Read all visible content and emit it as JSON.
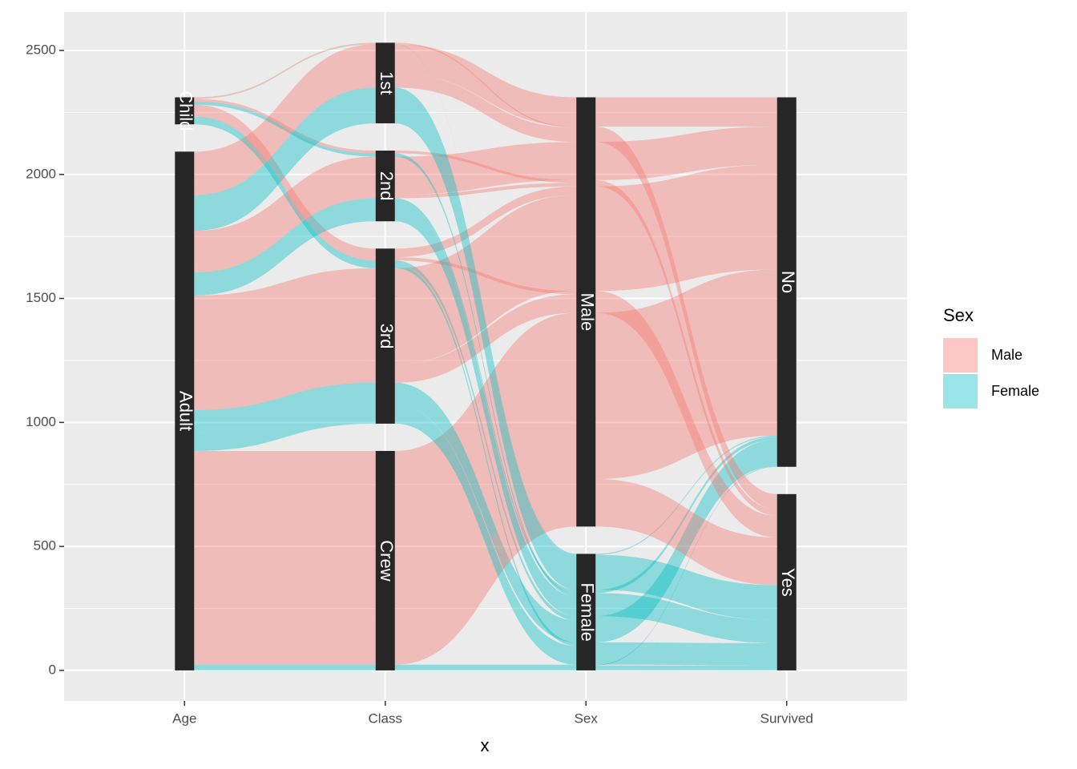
{
  "chart_data": {
    "type": "alluvial",
    "x_label": "x",
    "axes": [
      "Age",
      "Class",
      "Sex",
      "Survived"
    ],
    "strata": [
      [
        "Child",
        "Adult"
      ],
      [
        "1st",
        "2nd",
        "3rd",
        "Crew"
      ],
      [
        "Male",
        "Female"
      ],
      [
        "No",
        "Yes"
      ]
    ],
    "legend_title": "Sex",
    "series": [
      {
        "name": "Male",
        "color": "#F8766D"
      },
      {
        "name": "Female",
        "color": "#00BFC4"
      }
    ],
    "flows": [
      {
        "path": [
          "Child",
          "3rd",
          "Male",
          "No"
        ],
        "value": 35
      },
      {
        "path": [
          "Child",
          "3rd",
          "Female",
          "No"
        ],
        "value": 17
      },
      {
        "path": [
          "Adult",
          "1st",
          "Male",
          "No"
        ],
        "value": 118
      },
      {
        "path": [
          "Adult",
          "2nd",
          "Male",
          "No"
        ],
        "value": 154
      },
      {
        "path": [
          "Adult",
          "3rd",
          "Male",
          "No"
        ],
        "value": 387
      },
      {
        "path": [
          "Adult",
          "Crew",
          "Male",
          "No"
        ],
        "value": 670
      },
      {
        "path": [
          "Adult",
          "1st",
          "Female",
          "No"
        ],
        "value": 4
      },
      {
        "path": [
          "Adult",
          "2nd",
          "Female",
          "No"
        ],
        "value": 13
      },
      {
        "path": [
          "Adult",
          "3rd",
          "Female",
          "No"
        ],
        "value": 89
      },
      {
        "path": [
          "Adult",
          "Crew",
          "Female",
          "No"
        ],
        "value": 3
      },
      {
        "path": [
          "Child",
          "1st",
          "Male",
          "Yes"
        ],
        "value": 5
      },
      {
        "path": [
          "Child",
          "2nd",
          "Male",
          "Yes"
        ],
        "value": 11
      },
      {
        "path": [
          "Child",
          "3rd",
          "Male",
          "Yes"
        ],
        "value": 13
      },
      {
        "path": [
          "Child",
          "1st",
          "Female",
          "Yes"
        ],
        "value": 1
      },
      {
        "path": [
          "Child",
          "2nd",
          "Female",
          "Yes"
        ],
        "value": 13
      },
      {
        "path": [
          "Child",
          "3rd",
          "Female",
          "Yes"
        ],
        "value": 14
      },
      {
        "path": [
          "Adult",
          "1st",
          "Male",
          "Yes"
        ],
        "value": 57
      },
      {
        "path": [
          "Adult",
          "2nd",
          "Male",
          "Yes"
        ],
        "value": 14
      },
      {
        "path": [
          "Adult",
          "3rd",
          "Male",
          "Yes"
        ],
        "value": 75
      },
      {
        "path": [
          "Adult",
          "Crew",
          "Male",
          "Yes"
        ],
        "value": 192
      },
      {
        "path": [
          "Adult",
          "1st",
          "Female",
          "Yes"
        ],
        "value": 140
      },
      {
        "path": [
          "Adult",
          "2nd",
          "Female",
          "Yes"
        ],
        "value": 80
      },
      {
        "path": [
          "Adult",
          "3rd",
          "Female",
          "Yes"
        ],
        "value": 76
      },
      {
        "path": [
          "Adult",
          "Crew",
          "Female",
          "Yes"
        ],
        "value": 20
      }
    ],
    "ylim": [
      -123,
      2655
    ],
    "yticks": [
      0,
      500,
      1000,
      1500,
      2000,
      2500
    ],
    "grid": true
  }
}
